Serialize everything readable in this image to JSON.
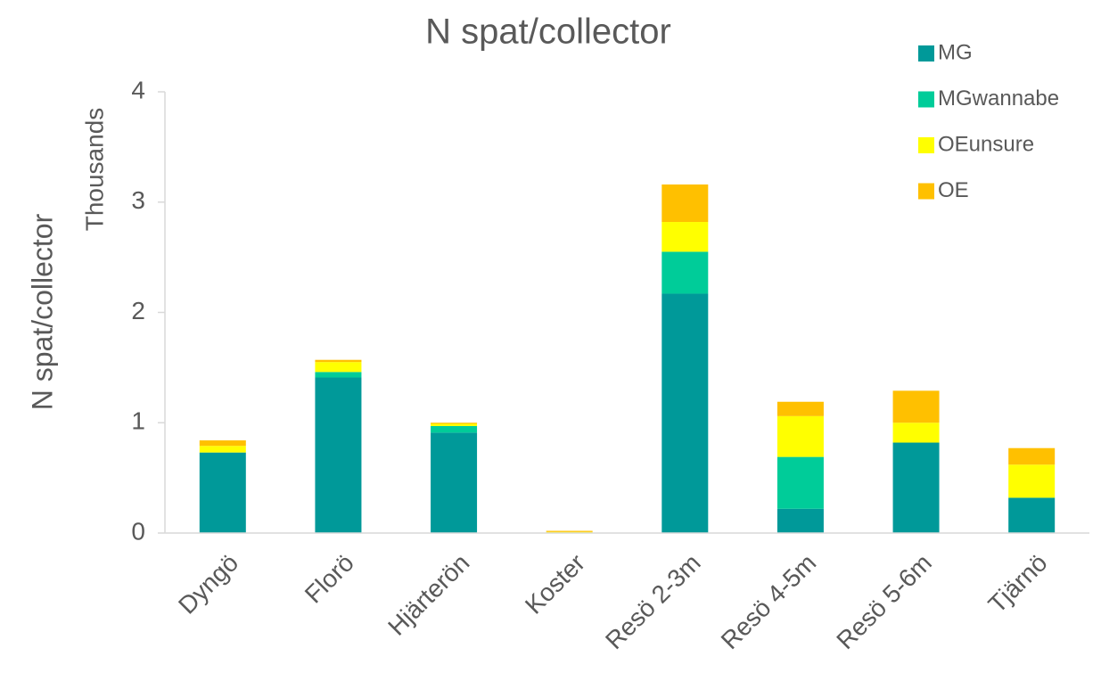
{
  "chart_data": {
    "type": "stacked_bar",
    "title": "N spat/collector",
    "y_label": "N spat/collector",
    "y_unit_label": "Thousands",
    "categories": [
      "Dyngö",
      "Florö",
      "Hjärterön",
      "Koster",
      "Resö 2-3m",
      "Resö 4-5m",
      "Resö 5-6m",
      "Tjärnö"
    ],
    "series": [
      {
        "name": "MG",
        "color": "#009999",
        "values": [
          0.73,
          1.41,
          0.91,
          0,
          2.17,
          0.22,
          0.82,
          0.32
        ]
      },
      {
        "name": "MGwannabe",
        "color": "#00cc99",
        "values": [
          0,
          0.05,
          0.06,
          0,
          0.38,
          0.47,
          0,
          0
        ]
      },
      {
        "name": "OEunsure",
        "color": "#ffff00",
        "values": [
          0.06,
          0.09,
          0.02,
          0.01,
          0.27,
          0.37,
          0.18,
          0.3
        ]
      },
      {
        "name": "OE",
        "color": "#ffc000",
        "values": [
          0.05,
          0.02,
          0.01,
          0.01,
          0.34,
          0.13,
          0.29,
          0.15
        ]
      }
    ],
    "ylim": [
      0,
      4
    ],
    "yticks": [
      0,
      1,
      2,
      3,
      4
    ],
    "grid": false,
    "legend": "top-right"
  }
}
